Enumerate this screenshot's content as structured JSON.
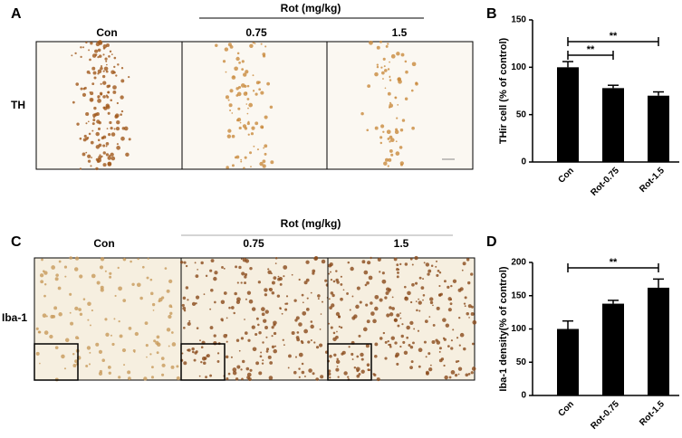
{
  "figure": {
    "panel_a": {
      "label": "A",
      "group_label": "Rot (mg/kg)",
      "columns": [
        "Con",
        "0.75",
        "1.5"
      ],
      "row_label": "TH"
    },
    "panel_c": {
      "label": "C",
      "group_label": "Rot (mg/kg)",
      "columns": [
        "Con",
        "0.75",
        "1.5"
      ],
      "row_label": "Iba-1"
    }
  },
  "chart_data": [
    {
      "type": "bar",
      "panel": "B",
      "ylabel": "THir cell (% of control)",
      "categories": [
        "Con",
        "Rot-0.75",
        "Rot-1.5"
      ],
      "values": [
        100,
        78,
        70
      ],
      "errors": [
        6,
        3,
        4
      ],
      "color": "#000000",
      "ylim": [
        0,
        150
      ],
      "yticks": [
        0,
        50,
        100,
        150
      ],
      "annotations": [
        {
          "label": "**",
          "categories": [
            "Con",
            "Rot-0.75"
          ]
        },
        {
          "label": "**",
          "categories": [
            "Con",
            "Rot-1.5"
          ]
        }
      ]
    },
    {
      "type": "bar",
      "panel": "D",
      "ylabel": "Iba-1 density(% of control)",
      "categories": [
        "Con",
        "Rot-0.75",
        "Rot-1.5"
      ],
      "values": [
        100,
        138,
        162
      ],
      "errors": [
        12,
        5,
        13
      ],
      "color": "#000000",
      "ylim": [
        0,
        200
      ],
      "yticks": [
        0,
        50,
        100,
        150,
        200
      ],
      "annotations": [
        {
          "label": "**",
          "categories": [
            "Con",
            "Rot-1.5"
          ]
        }
      ]
    }
  ]
}
